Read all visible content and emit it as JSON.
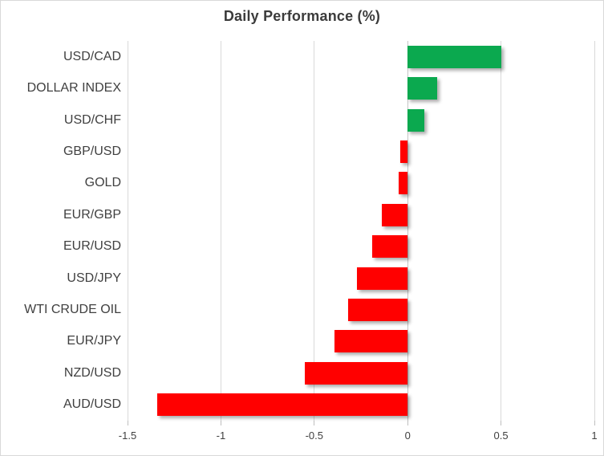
{
  "chart_data": {
    "type": "bar",
    "orientation": "horizontal",
    "title": "Daily Performance (%)",
    "categories": [
      "USD/CAD",
      "DOLLAR INDEX",
      "USD/CHF",
      "GBP/USD",
      "GOLD",
      "EUR/GBP",
      "EUR/USD",
      "USD/JPY",
      "WTI CRUDE OIL",
      "EUR/JPY",
      "NZD/USD",
      "AUD/USD"
    ],
    "values": [
      0.5,
      0.16,
      0.09,
      -0.04,
      -0.05,
      -0.14,
      -0.19,
      -0.27,
      -0.32,
      -0.39,
      -0.55,
      -1.34
    ],
    "xlim": [
      -1.5,
      1
    ],
    "xticks": [
      -1.5,
      -1,
      -0.5,
      0,
      0.5,
      1
    ],
    "xtick_labels": [
      "-1.5",
      "-1",
      "-0.5",
      "0",
      "0.5",
      "1"
    ],
    "grid": true,
    "legend": "none",
    "positive_color": "#0BA94F",
    "negative_color": "#FF0000",
    "gridline_color": "#D9D9D9",
    "text_color": "#404040"
  }
}
